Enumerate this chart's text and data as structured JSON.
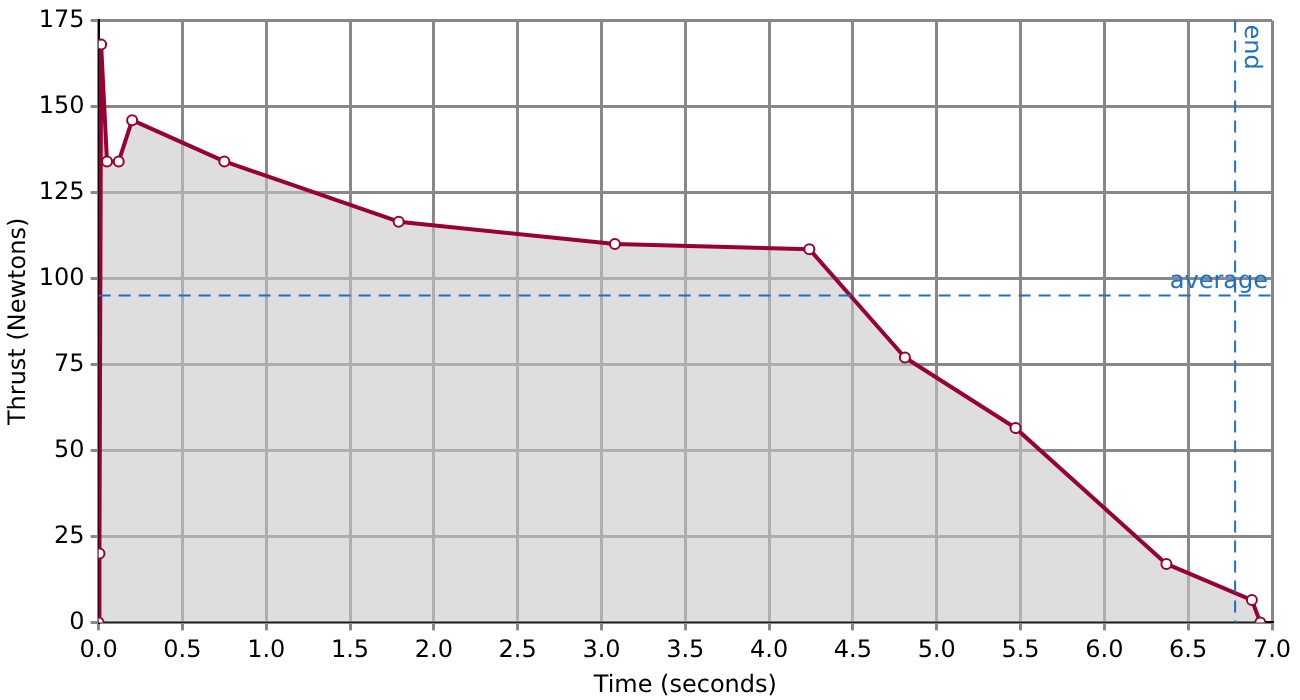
{
  "chart_data": {
    "type": "area",
    "xlabel": "Time (seconds)",
    "ylabel": "Thrust (Newtons)",
    "x": [
      0,
      0.005,
      0.015,
      0.05,
      0.12,
      0.2,
      0.75,
      1.79,
      3.08,
      4.24,
      4.81,
      5.47,
      6.37,
      6.88,
      6.93
    ],
    "series": [
      {
        "color": "#990033",
        "values": [
          0,
          20,
          168,
          134,
          134,
          146,
          134,
          116.5,
          110,
          108.5,
          77,
          56.5,
          17,
          6.5,
          0
        ]
      }
    ],
    "xlim": [
      0,
      7
    ],
    "xticks": [
      {
        "value": 0,
        "label": "0.0"
      },
      {
        "value": 0.5,
        "label": "0.5"
      },
      {
        "value": 1,
        "label": "1.0"
      },
      {
        "value": 1.5,
        "label": "1.5"
      },
      {
        "value": 2,
        "label": "2.0"
      },
      {
        "value": 2.5,
        "label": "2.5"
      },
      {
        "value": 3,
        "label": "3.0"
      },
      {
        "value": 3.5,
        "label": "3.5"
      },
      {
        "value": 4,
        "label": "4.0"
      },
      {
        "value": 4.5,
        "label": "4.5"
      },
      {
        "value": 5,
        "label": "5.0"
      },
      {
        "value": 5.5,
        "label": "5.5"
      },
      {
        "value": 6,
        "label": "6.0"
      },
      {
        "value": 6.5,
        "label": "6.5"
      },
      {
        "value": 7,
        "label": "7.0"
      }
    ],
    "ylim": [
      0,
      175
    ],
    "yticks": [
      0,
      25,
      50,
      75,
      100,
      125,
      150,
      175
    ],
    "ref_lines": [
      {
        "axis": "y",
        "value": 95,
        "label": "average",
        "color": "#1e6fcc",
        "line_style": "dashed"
      },
      {
        "axis": "x",
        "value": 6.78,
        "label": "end",
        "color": "#1e6fcc",
        "line_style": "dashed"
      }
    ],
    "grid": true,
    "legend": false,
    "marker": "circle",
    "line_style": "solid"
  }
}
